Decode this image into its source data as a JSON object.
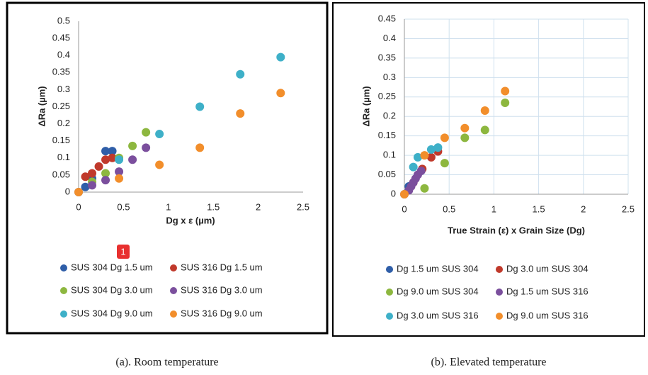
{
  "chart_data": [
    {
      "type": "scatter",
      "caption": "(a). Room temperature",
      "x_label": "Dg x ε (µm)",
      "y_label": "ΔRa (µm)",
      "badge": "1",
      "xlim": [
        0,
        2.5
      ],
      "xticks": [
        0,
        0.5,
        1,
        1.5,
        2,
        2.5
      ],
      "ylim": [
        0,
        0.5
      ],
      "yticks": [
        0,
        0.05,
        0.1,
        0.15,
        0.2,
        0.25,
        0.3,
        0.35,
        0.4,
        0.45,
        0.5
      ],
      "grid": false,
      "series": [
        {
          "name": "SUS 304 Dg 1.5 um",
          "color": "#2f5ea8",
          "x": [
            0,
            0.075,
            0.15,
            0.3,
            0.375
          ],
          "values": [
            0,
            0.015,
            0.04,
            0.12,
            0.12
          ]
        },
        {
          "name": "SUS 316 Dg 1.5 um",
          "color": "#c0392b",
          "x": [
            0.075,
            0.15,
            0.225,
            0.3,
            0.375
          ],
          "values": [
            0.045,
            0.055,
            0.075,
            0.095,
            0.1
          ]
        },
        {
          "name": "SUS 304 Dg 3.0 um",
          "color": "#8db73f",
          "x": [
            0.15,
            0.3,
            0.45,
            0.6,
            0.75
          ],
          "values": [
            0.03,
            0.055,
            0.1,
            0.135,
            0.175
          ]
        },
        {
          "name": "SUS 316 Dg 3.0 um",
          "color": "#7b4f9d",
          "x": [
            0.15,
            0.3,
            0.45,
            0.6,
            0.75
          ],
          "values": [
            0.02,
            0.035,
            0.06,
            0.095,
            0.13
          ]
        },
        {
          "name": "SUS 304 Dg 9.0 um",
          "color": "#3eb0c8",
          "x": [
            0.45,
            0.9,
            1.35,
            1.8,
            2.25
          ],
          "values": [
            0.095,
            0.17,
            0.25,
            0.345,
            0.395
          ]
        },
        {
          "name": "SUS 316 Dg 9.0 um",
          "color": "#f28e2b",
          "x": [
            0,
            0.45,
            0.9,
            1.35,
            1.8,
            2.25
          ],
          "values": [
            0,
            0.04,
            0.08,
            0.13,
            0.23,
            0.29
          ]
        }
      ]
    },
    {
      "type": "scatter",
      "caption": "(b). Elevated temperature",
      "x_label": "True Strain (ε) x Grain Size (Dg)",
      "y_label": "ΔRa (µm)",
      "xlim": [
        0,
        2.5
      ],
      "xticks": [
        0,
        0.5,
        1,
        1.5,
        2,
        2.5
      ],
      "ylim": [
        0,
        0.45
      ],
      "yticks": [
        0,
        0.05,
        0.1,
        0.15,
        0.2,
        0.25,
        0.3,
        0.35,
        0.4,
        0.45
      ],
      "grid": true,
      "series": [
        {
          "name": "Dg 1.5 um SUS 304",
          "color": "#2f5ea8",
          "x": [
            0,
            0.05
          ],
          "values": [
            0,
            0.02
          ]
        },
        {
          "name": "Dg 3.0 um SUS 304",
          "color": "#c0392b",
          "x": [
            0.1,
            0.2,
            0.3,
            0.375
          ],
          "values": [
            0.03,
            0.065,
            0.095,
            0.11
          ]
        },
        {
          "name": "Dg 9.0 um SUS 304",
          "color": "#8db73f",
          "x": [
            0.225,
            0.45,
            0.675,
            0.9,
            1.125
          ],
          "values": [
            0.015,
            0.08,
            0.145,
            0.165,
            0.235
          ]
        },
        {
          "name": "Dg 1.5 um SUS 316",
          "color": "#7b4f9d",
          "x": [
            0.05,
            0.075,
            0.1,
            0.125,
            0.15,
            0.1875
          ],
          "values": [
            0.01,
            0.02,
            0.03,
            0.04,
            0.05,
            0.06
          ]
        },
        {
          "name": "Dg 3.0 um SUS 316",
          "color": "#3eb0c8",
          "x": [
            0.1,
            0.15,
            0.3,
            0.375
          ],
          "values": [
            0.07,
            0.095,
            0.115,
            0.12
          ]
        },
        {
          "name": "Dg 9.0 um SUS 316",
          "color": "#f28e2b",
          "x": [
            0,
            0.225,
            0.45,
            0.675,
            0.9,
            1.125
          ],
          "values": [
            0,
            0.1,
            0.145,
            0.17,
            0.215,
            0.265
          ]
        }
      ]
    }
  ]
}
